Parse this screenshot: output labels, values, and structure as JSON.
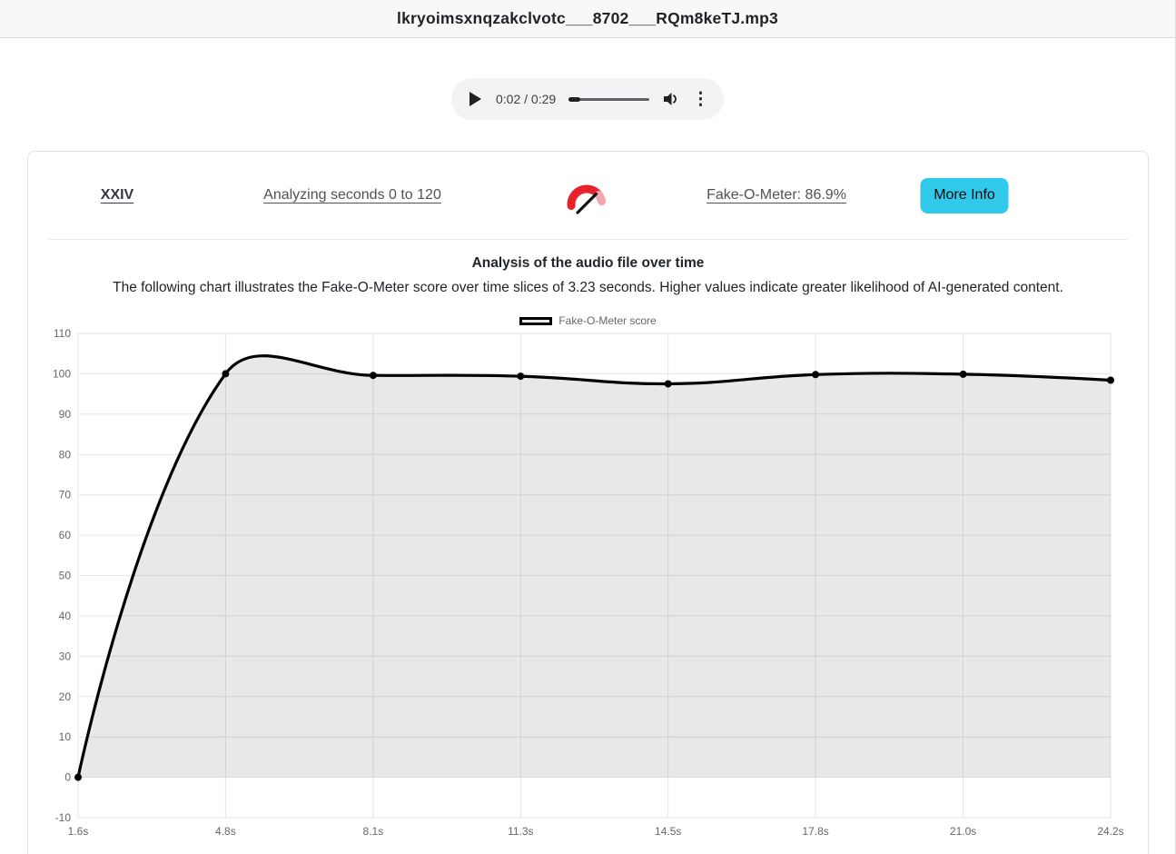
{
  "window": {
    "title": "lkryoimsxnqzakclvotc___8702___RQm8keTJ.mp3"
  },
  "audio_player": {
    "time_display": "0:02 / 0:29",
    "progress_percent": 15,
    "play_icon": "play-triangle",
    "volume_icon": "speaker-with-wave",
    "menu_icon": "⋮"
  },
  "analysis_bar": {
    "roman_label": "XXIV",
    "analyzing_link": "Analyzing seconds 0 to 120",
    "meter_link": "Fake-O-Meter: 86.9%",
    "more_info_label": "More Info",
    "button_color": "#31c9ea",
    "gauge_icon": {
      "name": "speedometer-gauge-icon",
      "arc_color": "#e8212b",
      "tip_color": "#f3a6ab",
      "needle_color": "#111111"
    }
  },
  "chart_section": {
    "title": "Analysis of the audio file over time",
    "subtitle": "The following chart illustrates the Fake-O-Meter score over time slices of 3.23 seconds. Higher values indicate greater likelihood of AI-generated content."
  },
  "chart_data": {
    "type": "area",
    "categories": [
      "1.6s",
      "4.8s",
      "8.1s",
      "11.3s",
      "14.5s",
      "17.8s",
      "21.0s",
      "24.2s"
    ],
    "values": [
      0,
      100,
      99.6,
      99.4,
      97.5,
      99.8,
      99.9,
      98.4
    ],
    "legend_label": "Fake-O-Meter score",
    "legend_position": "top",
    "xlabel": "",
    "ylabel": "",
    "y_ticks": [
      110,
      100,
      90,
      80,
      70,
      60,
      50,
      40,
      30,
      20,
      10,
      0,
      -10
    ],
    "ylim": [
      -10,
      110
    ],
    "grid": true,
    "fill_origin": 0,
    "line_color": "#000000",
    "fill_color": "rgba(0,0,0,0.09)",
    "point_color": "#000000",
    "grid_color": "#e6e6e6",
    "tick_color": "#666666",
    "line_tension": 0.4
  }
}
